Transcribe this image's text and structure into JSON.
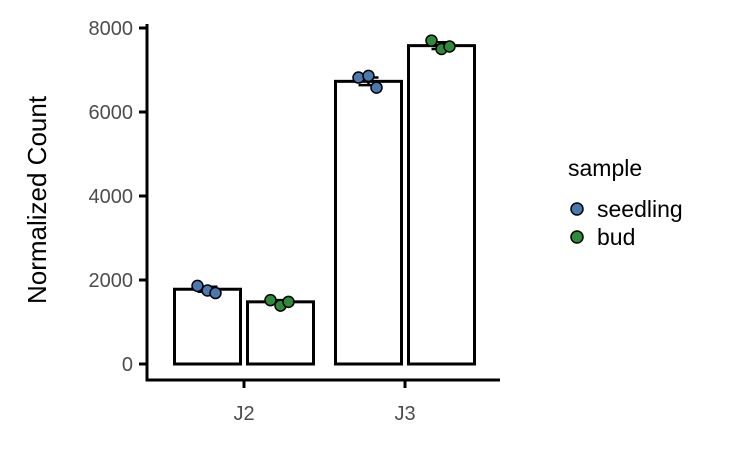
{
  "chart_data": {
    "type": "bar",
    "ylabel": "Normalized Count",
    "xlabel": "",
    "categories": [
      "J2",
      "J3"
    ],
    "ylim": [
      0,
      8000
    ],
    "yticks": [
      0,
      2000,
      4000,
      6000,
      8000
    ],
    "grid": false,
    "legend": {
      "title": "sample",
      "position": "right"
    },
    "series": [
      {
        "name": "seedling",
        "color": "#4a78b0",
        "values": [
          1780,
          6730
        ],
        "error": [
          60,
          90
        ],
        "points": [
          [
            1860,
            1750,
            1690
          ],
          [
            6820,
            6860,
            6580
          ]
        ]
      },
      {
        "name": "bud",
        "color": "#2e8b3a",
        "values": [
          1480,
          7580
        ],
        "error": [
          40,
          80
        ],
        "points": [
          [
            1520,
            1390,
            1480
          ],
          [
            7700,
            7500,
            7560
          ]
        ]
      }
    ]
  }
}
